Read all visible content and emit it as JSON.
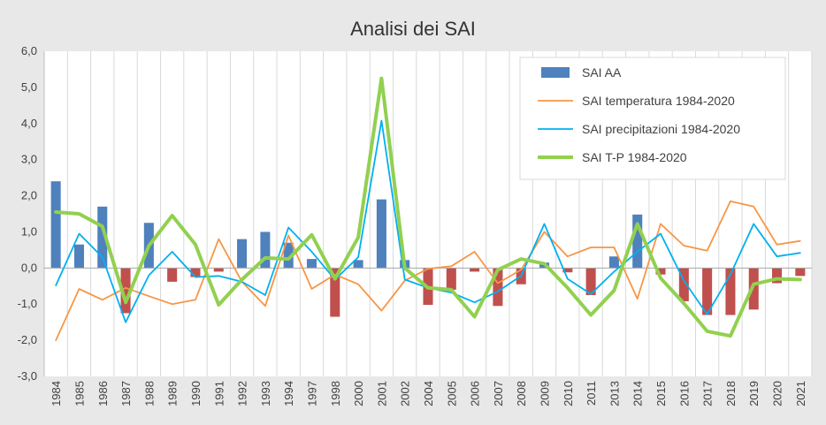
{
  "chart_data": {
    "type": "bar",
    "title": "Analisi dei SAI",
    "xlabel": "",
    "ylabel": "",
    "ylim": [
      -3,
      6
    ],
    "y_ticks": [
      -3,
      -2,
      -1,
      0,
      1,
      2,
      3,
      4,
      5,
      6
    ],
    "y_tick_labels": [
      "-3,0",
      "-2,0",
      "-1,0",
      "0,0",
      "1,0",
      "2,0",
      "3,0",
      "4,0",
      "5,0",
      "6,0"
    ],
    "grid": "vertical",
    "legend_position": "top-right",
    "categories": [
      "1984",
      "1985",
      "1986",
      "1987",
      "1988",
      "1989",
      "1990",
      "1991",
      "1992",
      "1993",
      "1994",
      "1997",
      "1998",
      "2000",
      "2001",
      "2002",
      "2004",
      "2005",
      "2006",
      "2007",
      "2008",
      "2009",
      "2010",
      "2011",
      "2013",
      "2014",
      "2015",
      "2016",
      "2017",
      "2018",
      "2019",
      "2020",
      "2021"
    ],
    "series": [
      {
        "name": "SAI AA",
        "kind": "bar",
        "positive_color": "#4f81bd",
        "negative_color": "#c0504d",
        "values": [
          2.4,
          0.65,
          1.7,
          -1.25,
          1.25,
          -0.38,
          -0.25,
          -0.1,
          0.8,
          1.0,
          0.7,
          0.25,
          -1.35,
          0.22,
          1.9,
          0.22,
          -1.02,
          -0.6,
          -0.1,
          -1.05,
          -0.45,
          0.15,
          -0.12,
          -0.75,
          0.32,
          1.48,
          -0.18,
          -0.92,
          -1.3,
          -1.3,
          -1.15,
          -0.42,
          -0.22
        ]
      },
      {
        "name": "SAI temperatura 1984-2020",
        "kind": "line",
        "color": "#f79646",
        "values": [
          -2.0,
          -0.58,
          -0.88,
          -0.55,
          -0.78,
          -1.0,
          -0.88,
          0.8,
          -0.38,
          -1.05,
          0.9,
          -0.58,
          -0.18,
          -0.45,
          -1.18,
          -0.35,
          -0.02,
          0.05,
          0.45,
          -0.42,
          -0.05,
          1.0,
          0.32,
          0.57,
          0.57,
          -0.85,
          1.22,
          0.62,
          0.48,
          1.85,
          1.7,
          0.65,
          0.75
        ]
      },
      {
        "name": "SAI precipitazioni 1984-2020",
        "kind": "line",
        "color": "#00b0f0",
        "values": [
          -0.48,
          0.95,
          0.3,
          -1.5,
          -0.2,
          0.45,
          -0.25,
          -0.22,
          -0.38,
          -0.75,
          1.12,
          0.45,
          -0.32,
          0.3,
          4.08,
          -0.32,
          -0.55,
          -0.68,
          -0.95,
          -0.65,
          -0.22,
          1.22,
          -0.3,
          -0.72,
          -0.1,
          0.45,
          0.95,
          -0.35,
          -1.28,
          -0.18,
          1.22,
          0.32,
          0.42
        ]
      },
      {
        "name": "SAI T-P 1984-2020",
        "kind": "line",
        "color": "#92d050",
        "values": [
          1.55,
          1.5,
          1.15,
          -0.95,
          0.62,
          1.45,
          0.65,
          -1.02,
          -0.32,
          0.28,
          0.25,
          0.92,
          -0.3,
          0.85,
          5.25,
          0.0,
          -0.55,
          -0.6,
          -1.35,
          -0.05,
          0.25,
          0.12,
          -0.55,
          -1.3,
          -0.62,
          1.22,
          -0.28,
          -0.98,
          -1.75,
          -1.88,
          -0.45,
          -0.3,
          -0.32
        ]
      }
    ]
  }
}
